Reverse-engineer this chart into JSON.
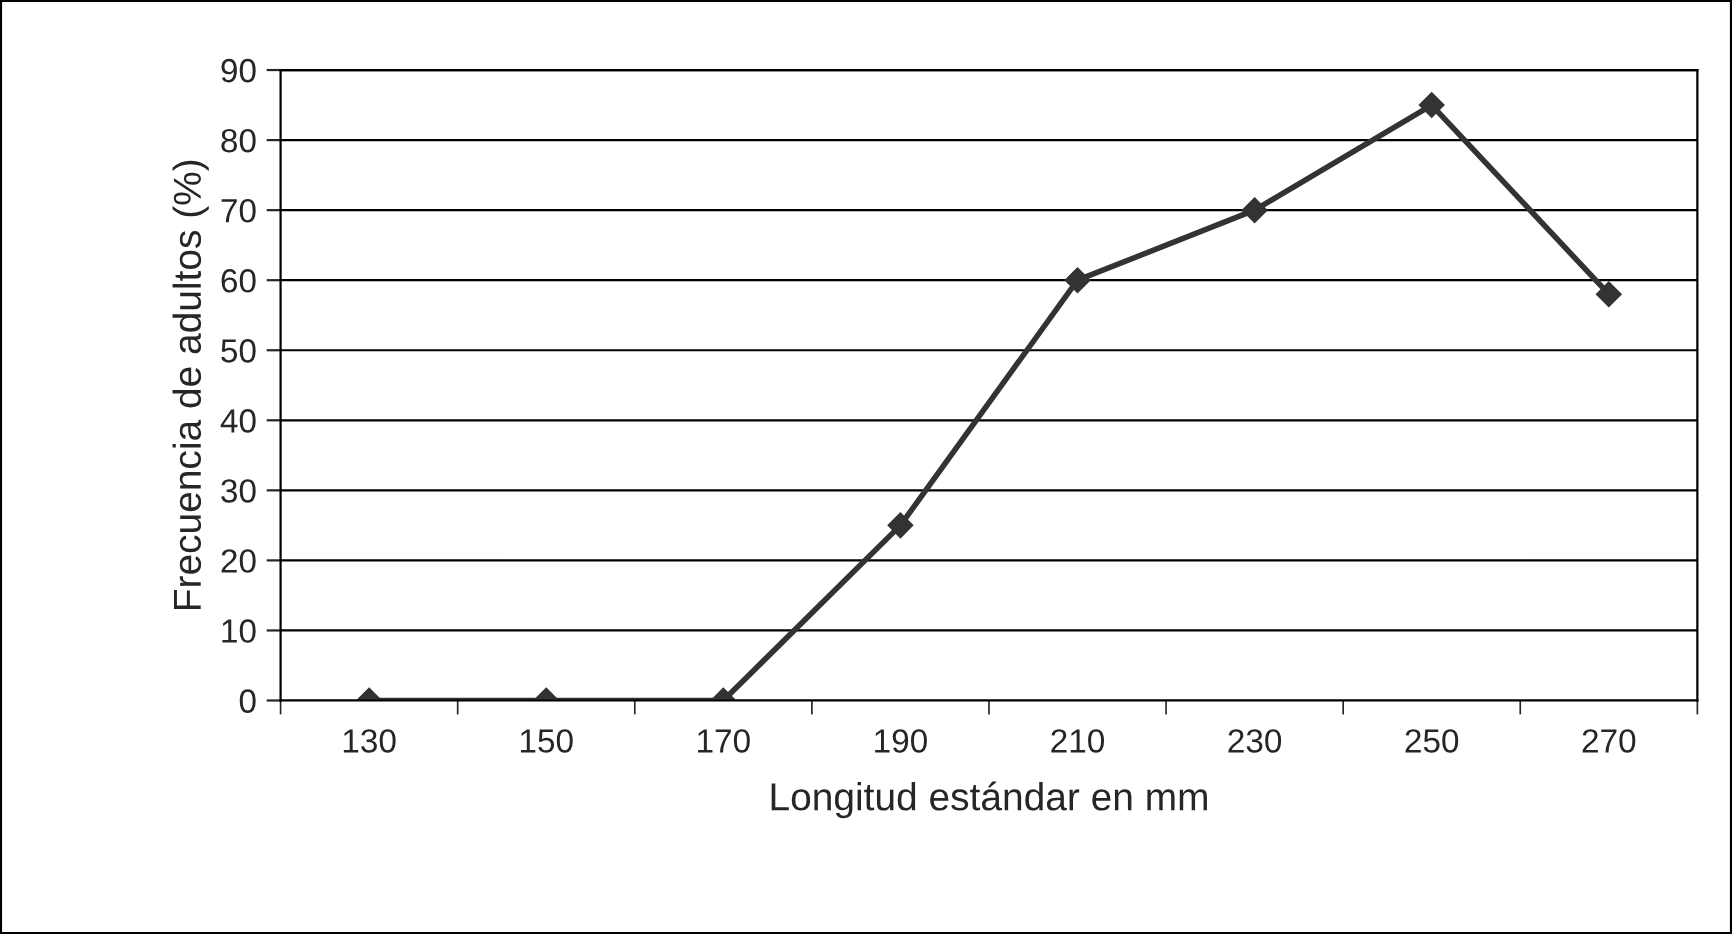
{
  "chart_data": {
    "type": "line",
    "xlabel": "Longitud estándar en mm",
    "ylabel": "Frecuencia de adultos (%)",
    "categories": [
      "130",
      "150",
      "170",
      "190",
      "210",
      "230",
      "250",
      "270"
    ],
    "series": [
      {
        "color": "#333333",
        "values": [
          0,
          0,
          0,
          25,
          60,
          70,
          85,
          58
        ]
      }
    ],
    "ylim": [
      0,
      90
    ],
    "yticks": [
      0,
      10,
      20,
      30,
      40,
      50,
      60,
      70,
      80,
      90
    ],
    "grid": "y",
    "marker": "diamond",
    "line_style": "solid",
    "legend": false
  }
}
